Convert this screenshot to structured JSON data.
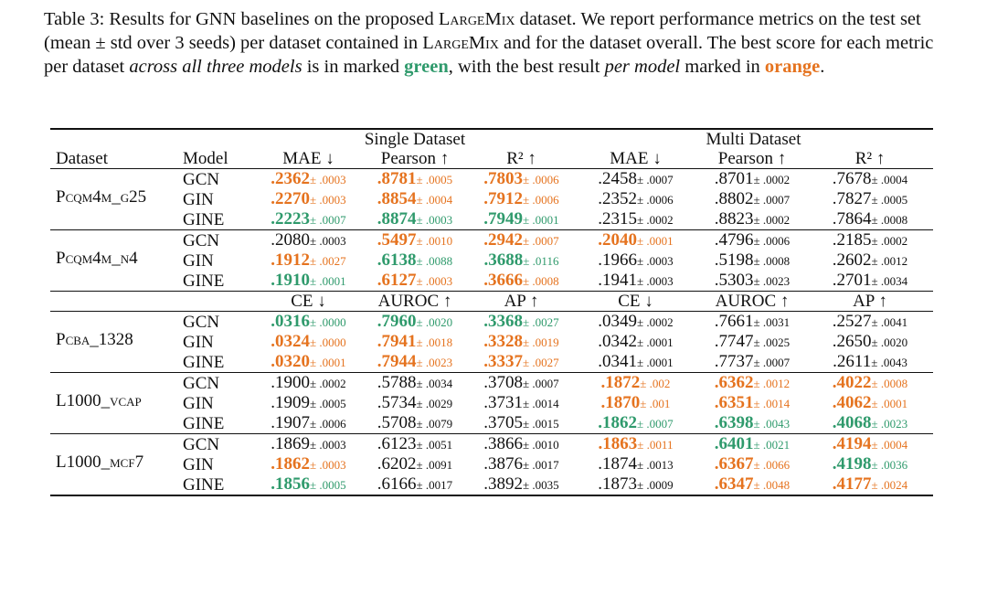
{
  "caption": {
    "segments": [
      {
        "text": "Table 3: Results for GNN baselines on the proposed ",
        "style": "plain"
      },
      {
        "text": "LargeMix",
        "style": "smallcaps"
      },
      {
        "text": " dataset. We report performance metrics on the test set (mean ± std over 3 seeds) per dataset contained in ",
        "style": "plain"
      },
      {
        "text": "LargeMix",
        "style": "smallcaps"
      },
      {
        "text": " and for the dataset overall. The best score for each metric per dataset ",
        "style": "plain"
      },
      {
        "text": "across all three models",
        "style": "italic"
      },
      {
        "text": " is in marked ",
        "style": "plain"
      },
      {
        "text": "green",
        "style": "green"
      },
      {
        "text": ", with the best result ",
        "style": "plain"
      },
      {
        "text": "per model",
        "style": "italic"
      },
      {
        "text": " marked in ",
        "style": "plain"
      },
      {
        "text": "orange",
        "style": "orange"
      },
      {
        "text": ".",
        "style": "plain"
      }
    ]
  },
  "highlight_colors": {
    "green": "#2f9a6c",
    "orange": "#e5731f"
  },
  "table": {
    "groups": [
      "Single Dataset",
      "Multi Dataset"
    ],
    "dataset_label": "Dataset",
    "model_label": "Model",
    "blocks": [
      {
        "metrics": [
          "MAE ↓",
          "Pearson ↑",
          "R² ↑",
          "MAE ↓",
          "Pearson ↑",
          "R² ↑"
        ],
        "datasets": [
          {
            "name": "Pcqm4m_g25",
            "rows": [
              {
                "model": "GCN",
                "cells": [
                  {
                    "mean": ".2362",
                    "std": "± .0003",
                    "best": "orange"
                  },
                  {
                    "mean": ".8781",
                    "std": "± .0005",
                    "best": "orange"
                  },
                  {
                    "mean": ".7803",
                    "std": "± .0006",
                    "best": "orange"
                  },
                  {
                    "mean": ".2458",
                    "std": "± .0007",
                    "best": null
                  },
                  {
                    "mean": ".8701",
                    "std": "± .0002",
                    "best": null
                  },
                  {
                    "mean": ".7678",
                    "std": "± .0004",
                    "best": null
                  }
                ]
              },
              {
                "model": "GIN",
                "cells": [
                  {
                    "mean": ".2270",
                    "std": "± .0003",
                    "best": "orange"
                  },
                  {
                    "mean": ".8854",
                    "std": "± .0004",
                    "best": "orange"
                  },
                  {
                    "mean": ".7912",
                    "std": "± .0006",
                    "best": "orange"
                  },
                  {
                    "mean": ".2352",
                    "std": "± .0006",
                    "best": null
                  },
                  {
                    "mean": ".8802",
                    "std": "± .0007",
                    "best": null
                  },
                  {
                    "mean": ".7827",
                    "std": "± .0005",
                    "best": null
                  }
                ]
              },
              {
                "model": "GINE",
                "cells": [
                  {
                    "mean": ".2223",
                    "std": "± .0007",
                    "best": "green"
                  },
                  {
                    "mean": ".8874",
                    "std": "± .0003",
                    "best": "green"
                  },
                  {
                    "mean": ".7949",
                    "std": "± .0001",
                    "best": "green"
                  },
                  {
                    "mean": ".2315",
                    "std": "± .0002",
                    "best": null
                  },
                  {
                    "mean": ".8823",
                    "std": "± .0002",
                    "best": null
                  },
                  {
                    "mean": ".7864",
                    "std": "± .0008",
                    "best": null
                  }
                ]
              }
            ]
          },
          {
            "name": "Pcqm4m_n4",
            "rows": [
              {
                "model": "GCN",
                "cells": [
                  {
                    "mean": ".2080",
                    "std": "± .0003",
                    "best": null
                  },
                  {
                    "mean": ".5497",
                    "std": "± .0010",
                    "best": "orange"
                  },
                  {
                    "mean": ".2942",
                    "std": "± .0007",
                    "best": "orange"
                  },
                  {
                    "mean": ".2040",
                    "std": "± .0001",
                    "best": "orange"
                  },
                  {
                    "mean": ".4796",
                    "std": "± .0006",
                    "best": null
                  },
                  {
                    "mean": ".2185",
                    "std": "± .0002",
                    "best": null
                  }
                ]
              },
              {
                "model": "GIN",
                "cells": [
                  {
                    "mean": ".1912",
                    "std": "± .0027",
                    "best": "orange"
                  },
                  {
                    "mean": ".6138",
                    "std": "± .0088",
                    "best": "green"
                  },
                  {
                    "mean": ".3688",
                    "std": "± .0116",
                    "best": "green"
                  },
                  {
                    "mean": ".1966",
                    "std": "± .0003",
                    "best": null
                  },
                  {
                    "mean": ".5198",
                    "std": "± .0008",
                    "best": null
                  },
                  {
                    "mean": ".2602",
                    "std": "± .0012",
                    "best": null
                  }
                ]
              },
              {
                "model": "GINE",
                "cells": [
                  {
                    "mean": ".1910",
                    "std": "± .0001",
                    "best": "green"
                  },
                  {
                    "mean": ".6127",
                    "std": "± .0003",
                    "best": "orange"
                  },
                  {
                    "mean": ".3666",
                    "std": "± .0008",
                    "best": "orange"
                  },
                  {
                    "mean": ".1941",
                    "std": "± .0003",
                    "best": null
                  },
                  {
                    "mean": ".5303",
                    "std": "± .0023",
                    "best": null
                  },
                  {
                    "mean": ".2701",
                    "std": "± .0034",
                    "best": null
                  }
                ]
              }
            ]
          }
        ]
      },
      {
        "metrics": [
          "CE ↓",
          "AUROC ↑",
          "AP ↑",
          "CE ↓",
          "AUROC ↑",
          "AP ↑"
        ],
        "datasets": [
          {
            "name": "Pcba_1328",
            "rows": [
              {
                "model": "GCN",
                "cells": [
                  {
                    "mean": ".0316",
                    "std": "± .0000",
                    "best": "green"
                  },
                  {
                    "mean": ".7960",
                    "std": "± .0020",
                    "best": "green"
                  },
                  {
                    "mean": ".3368",
                    "std": "± .0027",
                    "best": "green"
                  },
                  {
                    "mean": ".0349",
                    "std": "± .0002",
                    "best": null
                  },
                  {
                    "mean": ".7661",
                    "std": "± .0031",
                    "best": null
                  },
                  {
                    "mean": ".2527",
                    "std": "± .0041",
                    "best": null
                  }
                ]
              },
              {
                "model": "GIN",
                "cells": [
                  {
                    "mean": ".0324",
                    "std": "± .0000",
                    "best": "orange"
                  },
                  {
                    "mean": ".7941",
                    "std": "± .0018",
                    "best": "orange"
                  },
                  {
                    "mean": ".3328",
                    "std": "± .0019",
                    "best": "orange"
                  },
                  {
                    "mean": ".0342",
                    "std": "± .0001",
                    "best": null
                  },
                  {
                    "mean": ".7747",
                    "std": "± .0025",
                    "best": null
                  },
                  {
                    "mean": ".2650",
                    "std": "± .0020",
                    "best": null
                  }
                ]
              },
              {
                "model": "GINE",
                "cells": [
                  {
                    "mean": ".0320",
                    "std": "± .0001",
                    "best": "orange"
                  },
                  {
                    "mean": ".7944",
                    "std": "± .0023",
                    "best": "orange"
                  },
                  {
                    "mean": ".3337",
                    "std": "± .0027",
                    "best": "orange"
                  },
                  {
                    "mean": ".0341",
                    "std": "± .0001",
                    "best": null
                  },
                  {
                    "mean": ".7737",
                    "std": "± .0007",
                    "best": null
                  },
                  {
                    "mean": ".2611",
                    "std": "± .0043",
                    "best": null
                  }
                ]
              }
            ]
          },
          {
            "name": "L1000_vcap",
            "rows": [
              {
                "model": "GCN",
                "cells": [
                  {
                    "mean": ".1900",
                    "std": "± .0002",
                    "best": null
                  },
                  {
                    "mean": ".5788",
                    "std": "± .0034",
                    "best": null
                  },
                  {
                    "mean": ".3708",
                    "std": "± .0007",
                    "best": null
                  },
                  {
                    "mean": ".1872",
                    "std": "± .002",
                    "best": "orange"
                  },
                  {
                    "mean": ".6362",
                    "std": "± .0012",
                    "best": "orange"
                  },
                  {
                    "mean": ".4022",
                    "std": "± .0008",
                    "best": "orange"
                  }
                ]
              },
              {
                "model": "GIN",
                "cells": [
                  {
                    "mean": ".1909",
                    "std": "± .0005",
                    "best": null
                  },
                  {
                    "mean": ".5734",
                    "std": "± .0029",
                    "best": null
                  },
                  {
                    "mean": ".3731",
                    "std": "± .0014",
                    "best": null
                  },
                  {
                    "mean": ".1870",
                    "std": "± .001",
                    "best": "orange"
                  },
                  {
                    "mean": ".6351",
                    "std": "± .0014",
                    "best": "orange"
                  },
                  {
                    "mean": ".4062",
                    "std": "± .0001",
                    "best": "orange"
                  }
                ]
              },
              {
                "model": "GINE",
                "cells": [
                  {
                    "mean": ".1907",
                    "std": "± .0006",
                    "best": null
                  },
                  {
                    "mean": ".5708",
                    "std": "± .0079",
                    "best": null
                  },
                  {
                    "mean": ".3705",
                    "std": "± .0015",
                    "best": null
                  },
                  {
                    "mean": ".1862",
                    "std": "± .0007",
                    "best": "green"
                  },
                  {
                    "mean": ".6398",
                    "std": "± .0043",
                    "best": "green"
                  },
                  {
                    "mean": ".4068",
                    "std": "± .0023",
                    "best": "green"
                  }
                ]
              }
            ]
          },
          {
            "name": "L1000_mcf7",
            "rows": [
              {
                "model": "GCN",
                "cells": [
                  {
                    "mean": ".1869",
                    "std": "± .0003",
                    "best": null
                  },
                  {
                    "mean": ".6123",
                    "std": "± .0051",
                    "best": null
                  },
                  {
                    "mean": ".3866",
                    "std": "± .0010",
                    "best": null
                  },
                  {
                    "mean": ".1863",
                    "std": "± .0011",
                    "best": "orange"
                  },
                  {
                    "mean": ".6401",
                    "std": "± .0021",
                    "best": "green"
                  },
                  {
                    "mean": ".4194",
                    "std": "± .0004",
                    "best": "orange"
                  }
                ]
              },
              {
                "model": "GIN",
                "cells": [
                  {
                    "mean": ".1862",
                    "std": "± .0003",
                    "best": "orange"
                  },
                  {
                    "mean": ".6202",
                    "std": "± .0091",
                    "best": null
                  },
                  {
                    "mean": ".3876",
                    "std": "± .0017",
                    "best": null
                  },
                  {
                    "mean": ".1874",
                    "std": "± .0013",
                    "best": null
                  },
                  {
                    "mean": ".6367",
                    "std": "± .0066",
                    "best": "orange"
                  },
                  {
                    "mean": ".4198",
                    "std": "± .0036",
                    "best": "green"
                  }
                ]
              },
              {
                "model": "GINE",
                "cells": [
                  {
                    "mean": ".1856",
                    "std": "± .0005",
                    "best": "green"
                  },
                  {
                    "mean": ".6166",
                    "std": "± .0017",
                    "best": null
                  },
                  {
                    "mean": ".3892",
                    "std": "± .0035",
                    "best": null
                  },
                  {
                    "mean": ".1873",
                    "std": "± .0009",
                    "best": null
                  },
                  {
                    "mean": ".6347",
                    "std": "± .0048",
                    "best": "orange"
                  },
                  {
                    "mean": ".4177",
                    "std": "± .0024",
                    "best": "orange"
                  }
                ]
              }
            ]
          }
        ]
      }
    ]
  }
}
